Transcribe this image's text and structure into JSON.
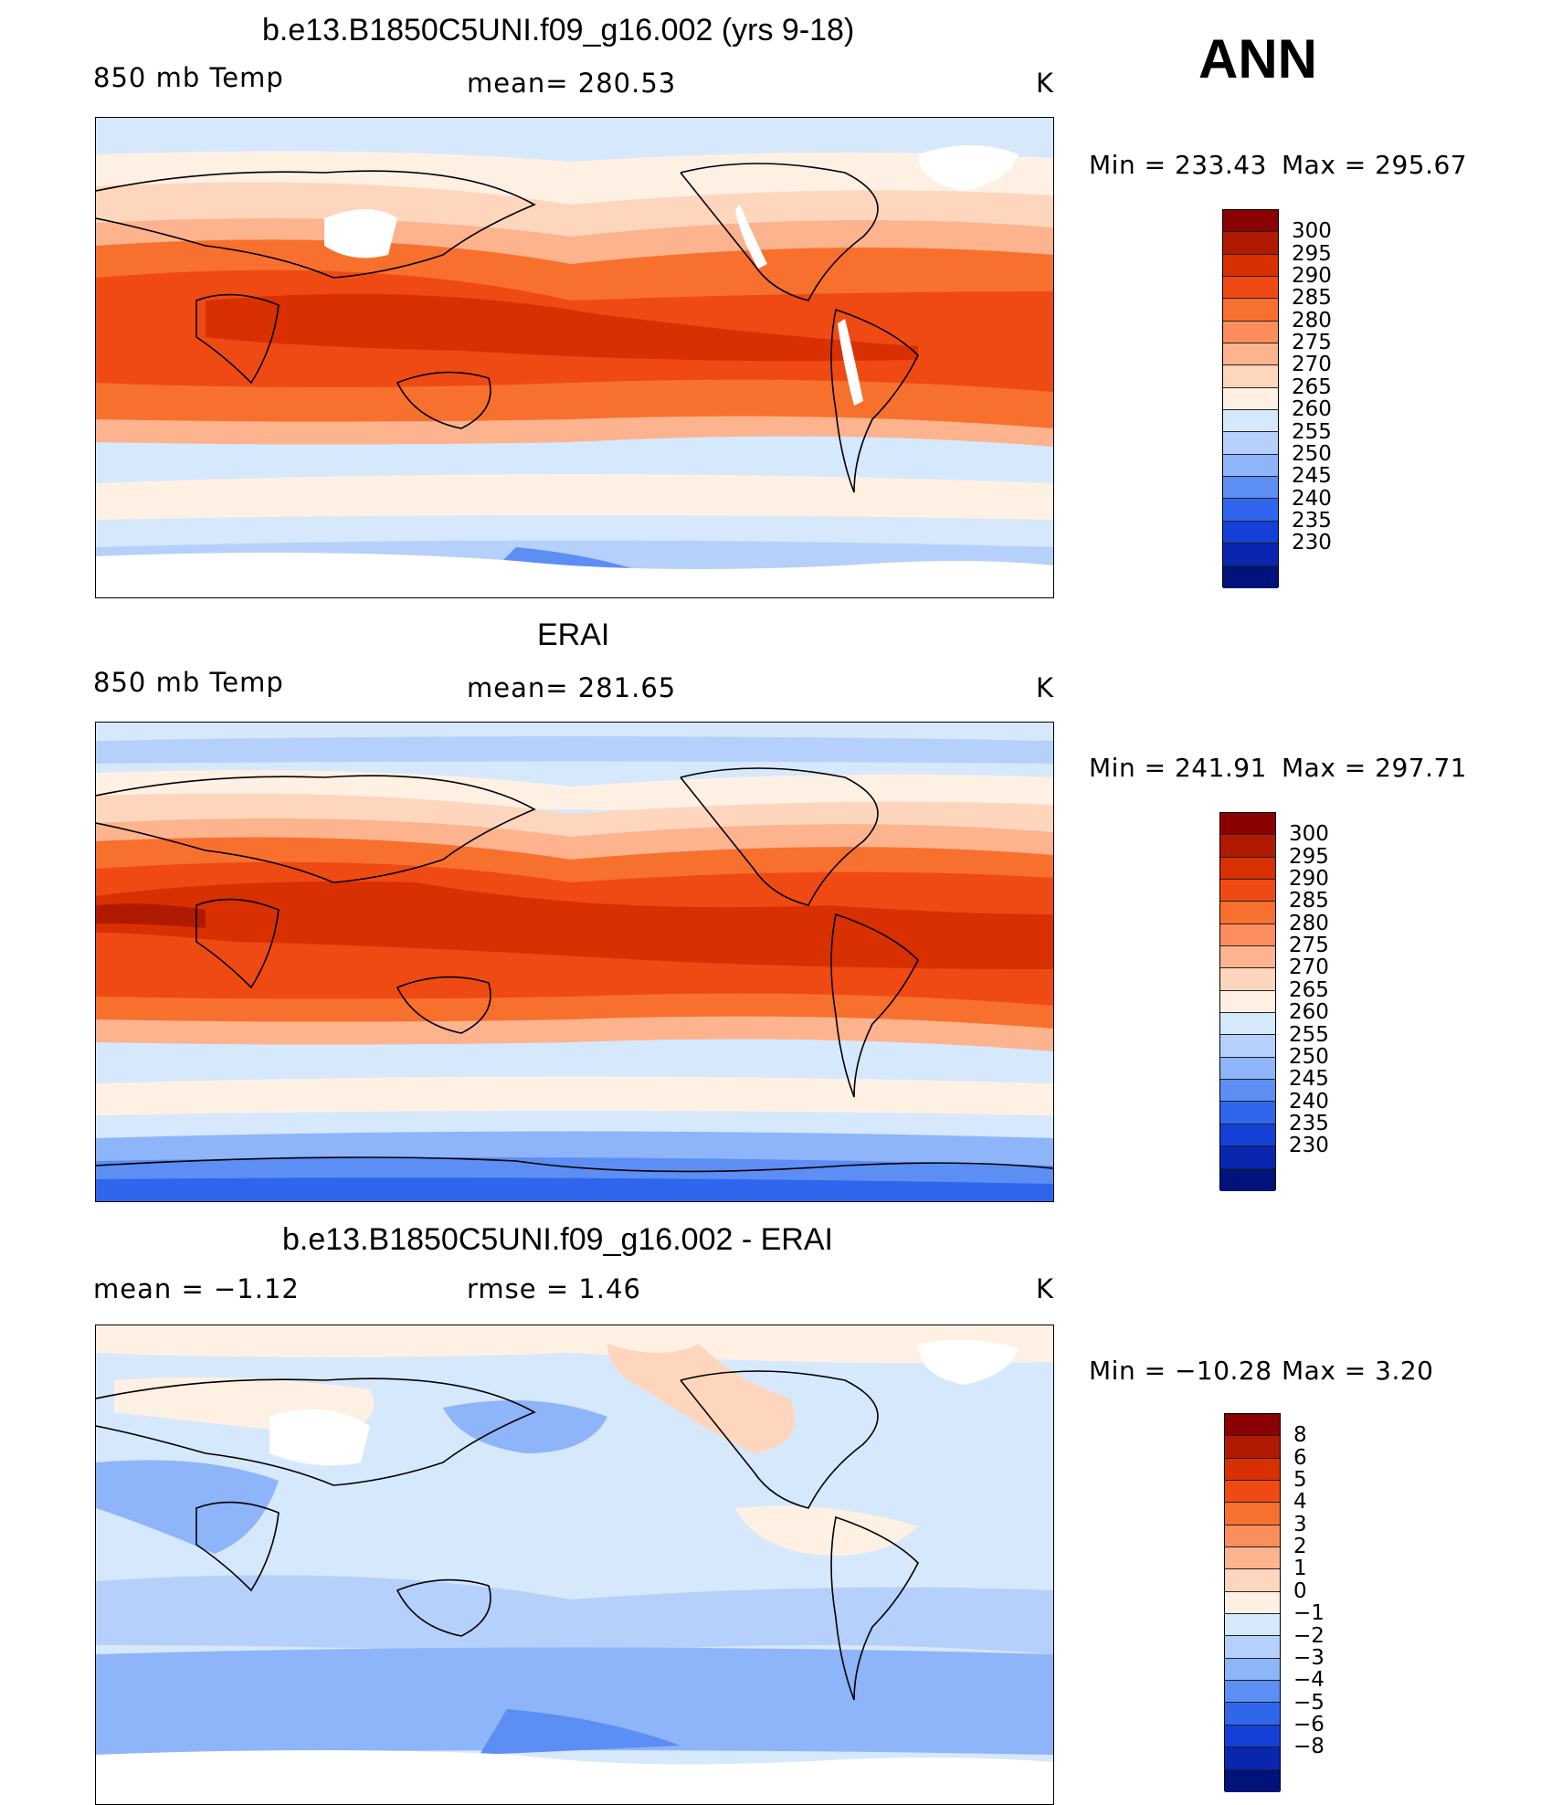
{
  "header": {
    "season": "ANN",
    "units": "K"
  },
  "colors": {
    "temperature_scale": [
      "#8b0000",
      "#b01a00",
      "#d83000",
      "#f04a14",
      "#f8702e",
      "#fb8e5c",
      "#fdb38e",
      "#fed6bd",
      "#fff0e4",
      "#d6e8fc",
      "#b5d0fb",
      "#8eb4fa",
      "#5c8ef4",
      "#2f66ec",
      "#1440d8",
      "#0a26b0",
      "#00137a"
    ],
    "difference_scale": [
      "#8b0000",
      "#b01a00",
      "#d83000",
      "#f04a14",
      "#f8702e",
      "#fb8e5c",
      "#fdb38e",
      "#fed6bd",
      "#fff0e4",
      "#d6e8fc",
      "#b5d0fb",
      "#8eb4fa",
      "#5c8ef4",
      "#2f66ec",
      "#1440d8",
      "#0a26b0",
      "#00137a"
    ],
    "missing": "#ffffff",
    "coastline": "#000000"
  },
  "panels": [
    {
      "title": "b.e13.B1850C5UNI.f09_g16.002 (yrs 9-18)",
      "left_label": "850  mb  Temp",
      "center_label": "mean=  280.53",
      "right_label": "K",
      "min_label": "Min  =  233.43",
      "max_label": "Max  =  295.67",
      "colorbar_levels": [
        "300",
        "295",
        "290",
        "285",
        "280",
        "275",
        "270",
        "265",
        "260",
        "255",
        "250",
        "245",
        "240",
        "235",
        "230"
      ]
    },
    {
      "title": "ERAI",
      "left_label": "850  mb  Temp",
      "center_label": "mean=  281.65",
      "right_label": "K",
      "min_label": "Min  =  241.91",
      "max_label": "Max  =  297.71",
      "colorbar_levels": [
        "300",
        "295",
        "290",
        "285",
        "280",
        "275",
        "270",
        "265",
        "260",
        "255",
        "250",
        "245",
        "240",
        "235",
        "230"
      ]
    },
    {
      "title": "b.e13.B1850C5UNI.f09_g16.002 - ERAI",
      "left_label": "mean  =    −1.12",
      "center_label": "rmse  =     1.46",
      "right_label": "K",
      "min_label": "Min  = −10.28",
      "max_label": "Max  =      3.20",
      "colorbar_levels": [
        "8",
        "6",
        "5",
        "4",
        "3",
        "2",
        "1",
        "0",
        "−1",
        "−2",
        "−3",
        "−4",
        "−5",
        "−6",
        "−8"
      ]
    }
  ]
}
